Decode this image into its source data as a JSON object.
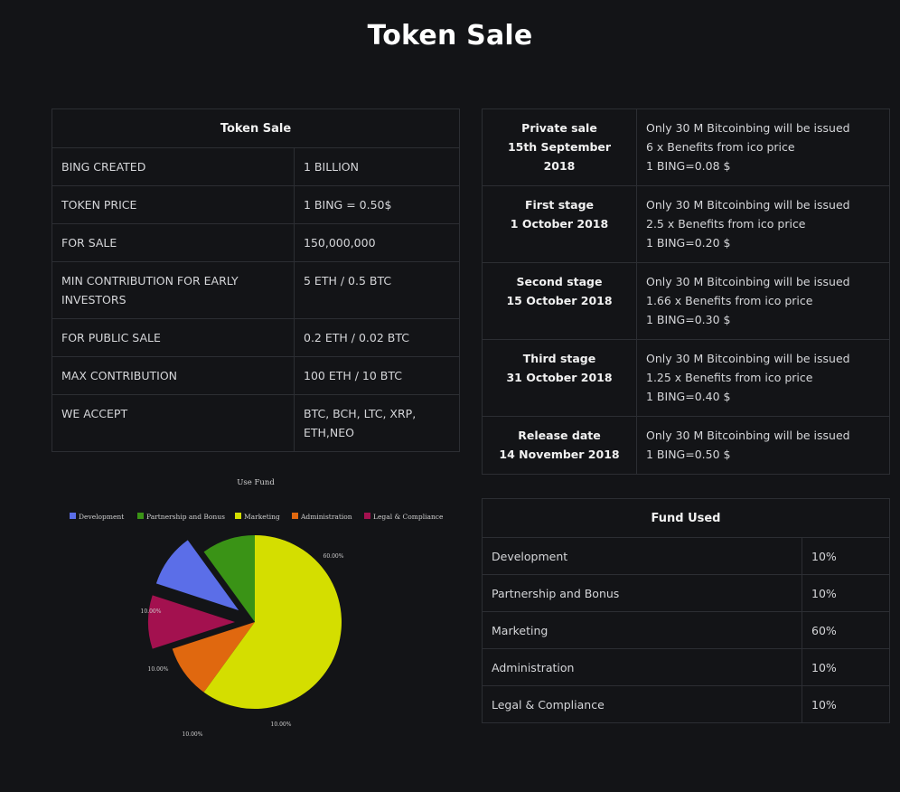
{
  "page": {
    "title": "Token Sale"
  },
  "sale_table": {
    "header": "Token Sale",
    "rows": [
      {
        "label": "BING CREATED",
        "value": "1 BILLION"
      },
      {
        "label": "TOKEN PRICE",
        "value": "1 BING = 0.50$"
      },
      {
        "label": "FOR SALE",
        "value": "150,000,000"
      },
      {
        "label": "MIN CONTRIBUTION FOR EARLY INVESTORS",
        "value": "5 ETH / 0.5 BTC"
      },
      {
        "label": "FOR PUBLIC SALE",
        "value": "0.2 ETH / 0.02 BTC"
      },
      {
        "label": "MAX CONTRIBUTION",
        "value": "100 ETH / 10 BTC"
      },
      {
        "label": "WE ACCEPT",
        "value": "BTC, BCH, LTC, XRP, ETH,NEO"
      }
    ]
  },
  "stages": [
    {
      "name": "Private sale",
      "date": "15th September 2018",
      "lines": [
        "Only 30 M Bitcoinbing will be issued",
        "6 x Benefits from ico price",
        "1 BING=0.08 $"
      ]
    },
    {
      "name": "First stage",
      "date": "1 October 2018",
      "lines": [
        "Only 30 M Bitcoinbing will be issued",
        "2.5 x Benefits from ico price",
        "1 BING=0.20 $"
      ]
    },
    {
      "name": "Second stage",
      "date": "15 October 2018",
      "lines": [
        "Only 30 M Bitcoinbing will be issued",
        "1.66 x Benefits from ico price",
        "1 BING=0.30 $"
      ]
    },
    {
      "name": "Third stage",
      "date": "31 October 2018",
      "lines": [
        "Only 30 M Bitcoinbing will be issued",
        "1.25 x Benefits from ico price",
        "1 BING=0.40 $"
      ]
    },
    {
      "name": "Release date",
      "date": "14 November 2018",
      "lines": [
        "Only 30 M Bitcoinbing will be issued",
        "1 BING=0.50 $"
      ]
    }
  ],
  "fund_table": {
    "header": "Fund Used",
    "rows": [
      {
        "label": "Development",
        "value": "10%"
      },
      {
        "label": "Partnership and Bonus",
        "value": "10%"
      },
      {
        "label": "Marketing",
        "value": "60%"
      },
      {
        "label": "Administration",
        "value": "10%"
      },
      {
        "label": "Legal & Compliance",
        "value": "10%"
      }
    ]
  },
  "chart_data": {
    "type": "pie",
    "title": "Use Fund",
    "legend_position": "top",
    "categories": [
      "Development",
      "Partnership and Bonus",
      "Marketing",
      "Administration",
      "Legal & Compliance"
    ],
    "values": [
      10,
      10,
      60,
      10,
      10
    ],
    "labels": [
      "10.00%",
      "10.00%",
      "60.00%",
      "10.00%",
      "10.00%"
    ],
    "colors": [
      "#5b6ee8",
      "#3a9316",
      "#d4de00",
      "#e0680f",
      "#a3114f"
    ],
    "exploded": [
      "Development",
      "Legal & Compliance"
    ]
  }
}
